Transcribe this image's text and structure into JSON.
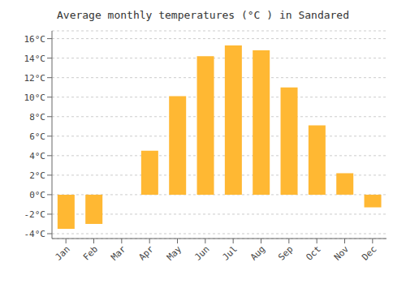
{
  "chart_data": {
    "type": "bar",
    "title": "Average monthly temperatures (°C ) in Sandared",
    "categories": [
      "Jan",
      "Feb",
      "Mar",
      "Apr",
      "May",
      "Jun",
      "Jul",
      "Aug",
      "Sep",
      "Oct",
      "Nov",
      "Dec"
    ],
    "values": [
      -3.5,
      -3.0,
      0.0,
      4.5,
      10.1,
      14.2,
      15.3,
      14.8,
      11.0,
      7.1,
      2.2,
      -1.3
    ],
    "color": "#FFB833",
    "ylim": [
      -4.5,
      16.8
    ],
    "yticks": [
      {
        "value": -4,
        "label": "-4°C"
      },
      {
        "value": -2,
        "label": "-2°C"
      },
      {
        "value": 0,
        "label": "0°C"
      },
      {
        "value": 2,
        "label": "2°C"
      },
      {
        "value": 4,
        "label": "4°C"
      },
      {
        "value": 6,
        "label": "6°C"
      },
      {
        "value": 8,
        "label": "8°C"
      },
      {
        "value": 10,
        "label": "10°C"
      },
      {
        "value": 12,
        "label": "12°C"
      },
      {
        "value": 14,
        "label": "14°C"
      },
      {
        "value": 16,
        "label": "16°C"
      }
    ],
    "grid": true
  }
}
